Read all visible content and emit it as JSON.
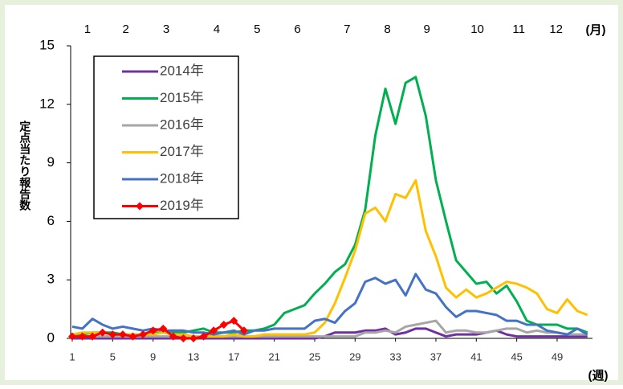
{
  "chart_data": {
    "type": "line",
    "y_label": "定点当たり報告数",
    "x_label": "(週)",
    "x2_label": "(月)",
    "x": [
      1,
      2,
      3,
      4,
      5,
      6,
      7,
      8,
      9,
      10,
      11,
      12,
      13,
      14,
      15,
      16,
      17,
      18,
      19,
      20,
      21,
      22,
      23,
      24,
      25,
      26,
      27,
      28,
      29,
      30,
      31,
      32,
      33,
      34,
      35,
      36,
      37,
      38,
      39,
      40,
      41,
      42,
      43,
      44,
      45,
      46,
      47,
      48,
      49,
      50,
      51,
      52
    ],
    "xlim": [
      1,
      52.5
    ],
    "xticks": [
      1,
      5,
      9,
      13,
      17,
      21,
      25,
      29,
      33,
      37,
      41,
      45,
      49
    ],
    "x2ticks": [
      {
        "value": 2.5,
        "label": "1"
      },
      {
        "value": 6.3,
        "label": "2"
      },
      {
        "value": 10.3,
        "label": "3"
      },
      {
        "value": 15.3,
        "label": "4"
      },
      {
        "value": 19.3,
        "label": "5"
      },
      {
        "value": 23.3,
        "label": "6"
      },
      {
        "value": 28.2,
        "label": "7"
      },
      {
        "value": 32.2,
        "label": "8"
      },
      {
        "value": 36.1,
        "label": "9"
      },
      {
        "value": 41.1,
        "label": "10"
      },
      {
        "value": 45.2,
        "label": "11"
      },
      {
        "value": 48.9,
        "label": "12"
      }
    ],
    "ylim": [
      0,
      15
    ],
    "yticks": [
      0,
      3,
      6,
      9,
      12,
      15
    ],
    "legend": "upper left",
    "series": [
      {
        "name": "2014年",
        "color": "#7030a0",
        "values": [
          0,
          0,
          0,
          0,
          0,
          0,
          0,
          0,
          0,
          0,
          0,
          0,
          0,
          0,
          0,
          0,
          0,
          0,
          0,
          0,
          0,
          0,
          0,
          0,
          0,
          0.1,
          0.3,
          0.3,
          0.3,
          0.4,
          0.4,
          0.5,
          0.2,
          0.3,
          0.5,
          0.5,
          0.3,
          0.1,
          0.2,
          0.2,
          0.2,
          0.3,
          0.4,
          0.2,
          0.1,
          0.1,
          0.1,
          0.1,
          0.1,
          0.1,
          0.1,
          0.1
        ]
      },
      {
        "name": "2015年",
        "color": "#00b050",
        "values": [
          0.2,
          0.2,
          0.3,
          0.3,
          0.3,
          0.2,
          0.2,
          0.2,
          0.3,
          0.3,
          0.3,
          0.3,
          0.4,
          0.5,
          0.3,
          0.3,
          0.3,
          0.4,
          0.4,
          0.5,
          0.7,
          1.3,
          1.5,
          1.7,
          2.3,
          2.8,
          3.4,
          3.8,
          4.8,
          6.6,
          10.4,
          12.8,
          11.0,
          13.1,
          13.4,
          11.4,
          8.1,
          6.0,
          4.0,
          3.4,
          2.8,
          2.9,
          2.3,
          2.7,
          1.9,
          0.9,
          0.7,
          0.7,
          0.7,
          0.5,
          0.5,
          0.3
        ]
      },
      {
        "name": "2016年",
        "color": "#a6a6a6",
        "values": [
          0.1,
          0.1,
          0.1,
          0.1,
          0.1,
          0.1,
          0.1,
          0.1,
          0.1,
          0.1,
          0.1,
          0.1,
          0.1,
          0.1,
          0.1,
          0.1,
          0.1,
          0.1,
          0.1,
          0.1,
          0.1,
          0.1,
          0.1,
          0.1,
          0.1,
          0.1,
          0.1,
          0.1,
          0.1,
          0.3,
          0.3,
          0.4,
          0.3,
          0.6,
          0.7,
          0.8,
          0.9,
          0.3,
          0.4,
          0.4,
          0.3,
          0.3,
          0.4,
          0.5,
          0.5,
          0.3,
          0.4,
          0.3,
          0.3,
          0.2,
          0.2,
          0.2
        ]
      },
      {
        "name": "2017年",
        "color": "#ffc000",
        "values": [
          0.2,
          0.3,
          0.3,
          0.3,
          0.2,
          0.2,
          0.2,
          0.2,
          0.2,
          0.3,
          0.2,
          0.2,
          0.1,
          0.1,
          0.1,
          0.1,
          0.2,
          0.1,
          0.1,
          0.2,
          0.2,
          0.2,
          0.2,
          0.2,
          0.3,
          0.8,
          1.8,
          3.1,
          4.5,
          6.4,
          6.7,
          6.0,
          7.4,
          7.2,
          8.1,
          5.5,
          4.2,
          2.6,
          2.1,
          2.5,
          2.1,
          2.3,
          2.6,
          2.9,
          2.8,
          2.6,
          2.3,
          1.5,
          1.3,
          2.0,
          1.4,
          1.2
        ]
      },
      {
        "name": "2018年",
        "color": "#4472c4",
        "values": [
          0.6,
          0.5,
          1.0,
          0.7,
          0.5,
          0.6,
          0.5,
          0.4,
          0.5,
          0.4,
          0.4,
          0.4,
          0.3,
          0.3,
          0.2,
          0.3,
          0.4,
          0.2,
          0.4,
          0.4,
          0.5,
          0.5,
          0.5,
          0.5,
          0.9,
          1.0,
          0.8,
          1.4,
          1.8,
          2.9,
          3.1,
          2.8,
          3.0,
          2.2,
          3.3,
          2.5,
          2.3,
          1.6,
          1.1,
          1.4,
          1.4,
          1.3,
          1.2,
          0.9,
          0.9,
          0.7,
          0.7,
          0.4,
          0.3,
          0.2,
          0.5,
          0.2
        ]
      },
      {
        "name": "2019年",
        "color": "#ff0000",
        "marker": "diamond",
        "values": [
          0.1,
          0.1,
          0.1,
          0.3,
          0.2,
          0.2,
          0.1,
          0.2,
          0.4,
          0.5,
          0.1,
          0.0,
          0.0,
          0.1,
          0.4,
          0.7,
          0.9,
          0.4,
          null,
          null,
          null,
          null,
          null,
          null,
          null,
          null,
          null,
          null,
          null,
          null,
          null,
          null,
          null,
          null,
          null,
          null,
          null,
          null,
          null,
          null,
          null,
          null,
          null,
          null,
          null,
          null,
          null,
          null,
          null,
          null,
          null,
          null
        ]
      }
    ]
  }
}
